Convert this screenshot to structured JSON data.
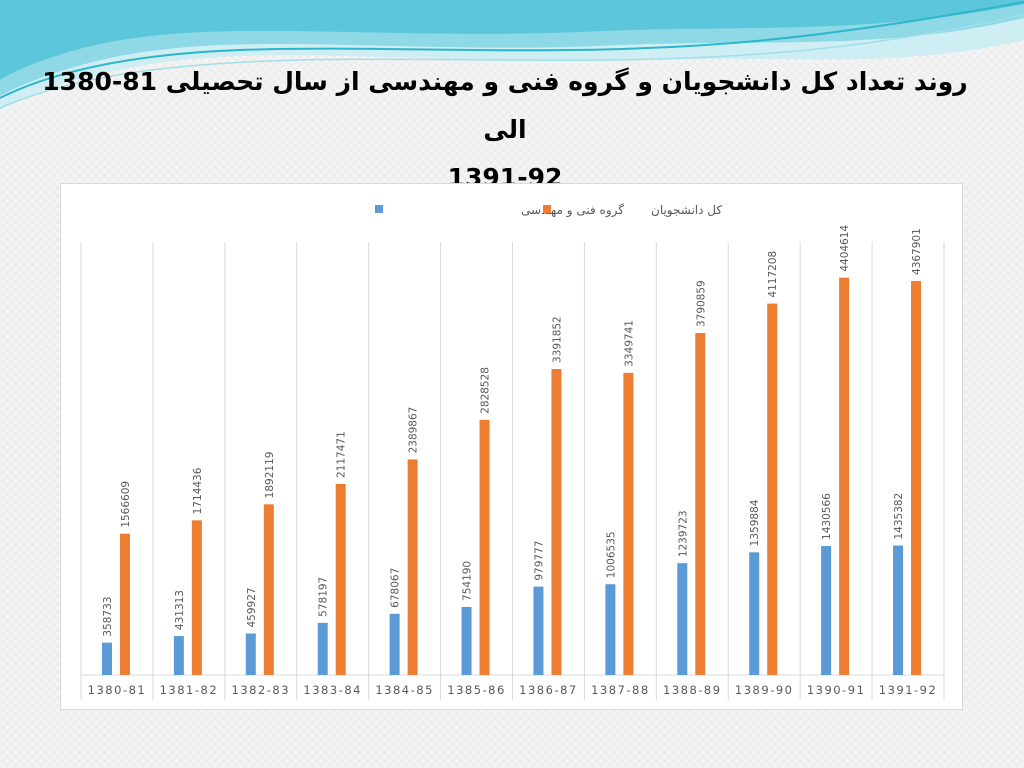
{
  "slide": {
    "title_line1": "روند تعداد کل دانشجویان و گروه فنی و مهندسی از سال تحصیلی 81-1380 الی",
    "title_line2": "1391-92"
  },
  "colors": {
    "series_blue": "#5b9bd5",
    "series_orange": "#ed7d31",
    "grid": "#d9d9d9",
    "wave_dark": "#2bb6cc",
    "wave_light": "#bfe9f1"
  },
  "chart_data": {
    "type": "bar",
    "title": "",
    "xlabel": "",
    "ylabel": "",
    "legend_position": "top",
    "grid": true,
    "ylim": [
      0,
      4800000
    ],
    "categories": [
      "1380-81",
      "1381-82",
      "1382-83",
      "1383-84",
      "1384-85",
      "1385-86",
      "1386-87",
      "1387-88",
      "1388-89",
      "1389-90",
      "1390-91",
      "1391-92"
    ],
    "series": [
      {
        "name": "گروه فنی و مهندسی",
        "color": "#5b9bd5",
        "values": [
          358733,
          431313,
          459927,
          578197,
          678067,
          754190,
          979777,
          1006535,
          1239723,
          1359884,
          1430566,
          1435382
        ]
      },
      {
        "name": "کل دانشجویان",
        "color": "#ed7d31",
        "values": [
          1566609,
          1714436,
          1892119,
          2117471,
          2389867,
          2828528,
          3391852,
          3349741,
          3790859,
          4117208,
          4404614,
          4367901
        ]
      }
    ]
  }
}
